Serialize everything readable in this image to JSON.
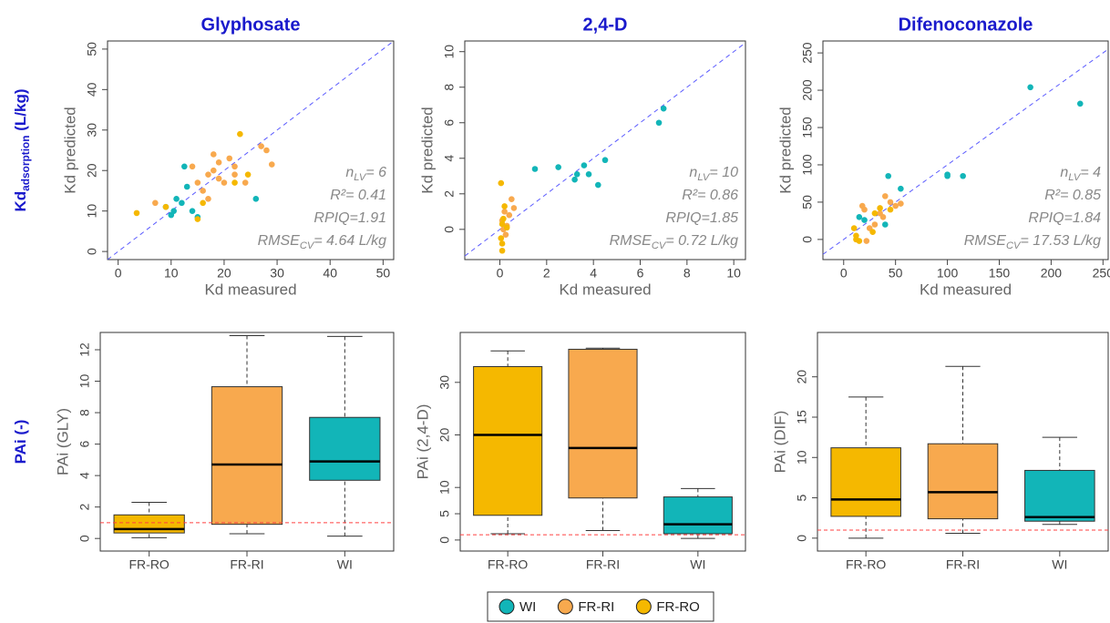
{
  "row_labels": [
    [
      "Kd",
      "adsorption",
      " (L/kg)"
    ],
    [
      "PAi (-)"
    ]
  ],
  "chart_data": [
    {
      "type": "scatter",
      "title": "Glyphosate",
      "x_label": "Kd measured",
      "y_label": "Kd predicted",
      "xlim": [
        -2,
        52
      ],
      "ylim": [
        -2,
        52
      ],
      "xticks": [
        0,
        10,
        20,
        30,
        40,
        50
      ],
      "yticks": [
        0,
        10,
        20,
        30,
        40,
        50
      ],
      "annotations": [
        [
          "n",
          "LV",
          "= 6"
        ],
        [
          "R²= 0.41"
        ],
        [
          "RPIQ=1.91"
        ],
        [
          "RMSE",
          "CV",
          "= 4.64 L/kg"
        ]
      ],
      "series": [
        {
          "name": "WI",
          "color": "#12b5b8",
          "x": [
            9,
            10,
            10.5,
            11,
            12,
            12.5,
            13,
            14,
            15,
            26
          ],
          "y": [
            11,
            9,
            10,
            13,
            12,
            21,
            16,
            10,
            8.5,
            13
          ]
        },
        {
          "name": "FR-RI",
          "color": "#f8a94e",
          "x": [
            7,
            14,
            15,
            16,
            17,
            17,
            18,
            18,
            19,
            19,
            20,
            21,
            22,
            22,
            24,
            27,
            28,
            29
          ],
          "y": [
            12,
            21,
            17,
            15,
            19,
            13,
            20,
            24,
            18,
            22,
            17,
            23,
            19,
            21,
            17,
            26,
            25,
            21.5
          ]
        },
        {
          "name": "FR-RO",
          "color": "#f5b800",
          "x": [
            3.5,
            9,
            15,
            23,
            22,
            24.5,
            16
          ],
          "y": [
            9.5,
            11,
            8,
            29,
            17,
            19,
            12
          ]
        }
      ]
    },
    {
      "type": "scatter",
      "title": "2,4-D",
      "x_label": "Kd measured",
      "y_label": "Kd predicted",
      "xlim": [
        -1.5,
        10.5
      ],
      "ylim": [
        -1.7,
        10.6
      ],
      "xticks": [
        0,
        2,
        4,
        6,
        8,
        10
      ],
      "yticks": [
        0,
        2,
        4,
        6,
        8,
        10
      ],
      "annotations": [
        [
          "n",
          "LV",
          "= 10"
        ],
        [
          "R²= 0.86"
        ],
        [
          "RPIQ=1.85"
        ],
        [
          "RMSE",
          "CV",
          "= 0.72 L/kg"
        ]
      ],
      "series": [
        {
          "name": "WI",
          "color": "#12b5b8",
          "x": [
            1.5,
            2.5,
            3.2,
            3.3,
            3.6,
            3.8,
            4.2,
            4.5,
            6.8,
            7
          ],
          "y": [
            3.4,
            3.5,
            2.8,
            3.1,
            3.6,
            3.1,
            2.5,
            3.9,
            6,
            6.8
          ]
        },
        {
          "name": "FR-RI",
          "color": "#f8a94e",
          "x": [
            0.1,
            0.2,
            0.3,
            0.5,
            0.4,
            0.15,
            0.6,
            0.25
          ],
          "y": [
            0.5,
            1,
            0.2,
            1.7,
            0.8,
            0,
            1.2,
            -0.3
          ]
        },
        {
          "name": "FR-RO",
          "color": "#f5b800",
          "x": [
            0.1,
            0.05,
            0.1,
            0.2,
            0.15,
            0.05,
            0.3,
            0.1
          ],
          "y": [
            -1.2,
            -0.5,
            0.3,
            1.3,
            0.6,
            2.6,
            0.1,
            -0.8
          ]
        }
      ]
    },
    {
      "type": "scatter",
      "title": "Difenoconazole",
      "x_label": "Kd measured",
      "y_label": "Kd predicted",
      "xlim": [
        -20,
        255
      ],
      "ylim": [
        -27,
        266
      ],
      "xticks": [
        0,
        50,
        100,
        150,
        200,
        250
      ],
      "yticks": [
        0,
        50,
        100,
        150,
        200,
        250
      ],
      "annotations": [
        [
          "n",
          "LV",
          "= 4"
        ],
        [
          "R²= 0.85"
        ],
        [
          "RPIQ=1.84"
        ],
        [
          "RMSE",
          "CV",
          "= 17.53 L/kg"
        ]
      ],
      "series": [
        {
          "name": "WI",
          "color": "#12b5b8",
          "x": [
            15,
            20,
            40,
            43,
            100,
            100,
            115,
            180,
            228,
            55
          ],
          "y": [
            30,
            26,
            20,
            85,
            85,
            87,
            85,
            204,
            182,
            68
          ]
        },
        {
          "name": "FR-RI",
          "color": "#f8a94e",
          "x": [
            18,
            20,
            25,
            30,
            35,
            40,
            45,
            50,
            55,
            38,
            22
          ],
          "y": [
            45,
            40,
            15,
            20,
            35,
            58,
            50,
            45,
            48,
            30,
            -2
          ]
        },
        {
          "name": "FR-RO",
          "color": "#f5b800",
          "x": [
            10,
            12,
            15,
            12,
            30,
            35,
            28,
            45
          ],
          "y": [
            15,
            5,
            -2,
            0,
            35,
            42,
            10,
            40
          ]
        }
      ]
    },
    {
      "type": "box",
      "y_label": "PAi (GLY)",
      "ylim": [
        -0.8,
        13.1
      ],
      "yticks": [
        0,
        2,
        4,
        6,
        8,
        10,
        12
      ],
      "hline": 1,
      "hline_color": "#ff4040",
      "categories": [
        "FR-RO",
        "FR-RI",
        "WI"
      ],
      "colors": [
        "#f5b800",
        "#f8a94e",
        "#12b5b8"
      ],
      "boxes": [
        {
          "whislo": 0.05,
          "q1": 0.35,
          "med": 0.6,
          "q3": 1.5,
          "whishi": 2.3
        },
        {
          "whislo": 0.3,
          "q1": 0.9,
          "med": 4.7,
          "q3": 9.65,
          "whishi": 12.9
        },
        {
          "whislo": 0.15,
          "q1": 3.7,
          "med": 4.9,
          "q3": 7.7,
          "whishi": 12.85
        }
      ]
    },
    {
      "type": "box",
      "y_label": "PAi (2,4-D)",
      "ylim": [
        -2.1,
        39.5
      ],
      "yticks": [
        0,
        5,
        10,
        20,
        30
      ],
      "hline": 1,
      "hline_color": "#ff4040",
      "categories": [
        "FR-RO",
        "FR-RI",
        "WI"
      ],
      "colors": [
        "#f5b800",
        "#f8a94e",
        "#12b5b8"
      ],
      "boxes": [
        {
          "whislo": 1.2,
          "q1": 4.7,
          "med": 20,
          "q3": 33,
          "whishi": 36
        },
        {
          "whislo": 1.8,
          "q1": 8,
          "med": 17.5,
          "q3": 36.3,
          "whishi": 36.5
        },
        {
          "whislo": 0.3,
          "q1": 1.2,
          "med": 3,
          "q3": 8.2,
          "whishi": 9.8
        }
      ]
    },
    {
      "type": "box",
      "y_label": "PAi (DIF)",
      "ylim": [
        -1.6,
        25.5
      ],
      "yticks": [
        0,
        5,
        10,
        15,
        20
      ],
      "hline": 1,
      "hline_color": "#ff4040",
      "categories": [
        "FR-RO",
        "FR-RI",
        "WI"
      ],
      "colors": [
        "#f5b800",
        "#f8a94e",
        "#12b5b8"
      ],
      "boxes": [
        {
          "whislo": 0,
          "q1": 2.7,
          "med": 4.8,
          "q3": 11.2,
          "whishi": 17.5
        },
        {
          "whislo": 0.6,
          "q1": 2.4,
          "med": 5.7,
          "q3": 11.7,
          "whishi": 21.3
        },
        {
          "whislo": 1.7,
          "q1": 2.1,
          "med": 2.6,
          "q3": 8.4,
          "whishi": 12.5
        }
      ]
    }
  ]
}
